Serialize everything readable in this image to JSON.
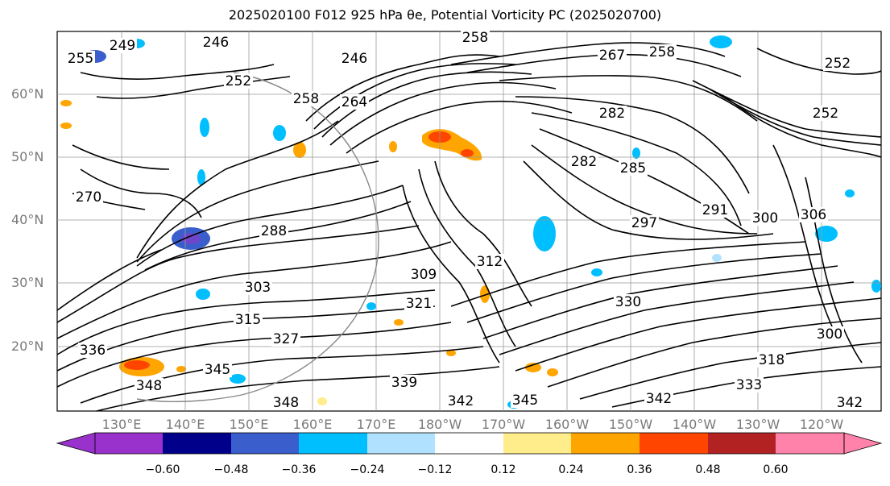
{
  "title": "2025020100 F012 925 hPa θe, Potential Vorticity PC (2025020700)",
  "map": {
    "lat_labels": [
      "60°N",
      "50°N",
      "40°N",
      "30°N",
      "20°N"
    ],
    "lon_labels": [
      "130°E",
      "140°E",
      "150°E",
      "160°E",
      "170°E",
      "180°W",
      "170°W",
      "160°W",
      "150°W",
      "140°W",
      "130°W",
      "120°W"
    ],
    "contour_labels": [
      "255",
      "249",
      "246",
      "246",
      "252",
      "258",
      "264",
      "258",
      "267",
      "258",
      "252",
      "252",
      "282",
      "282",
      "285",
      "270",
      "288",
      "297",
      "291",
      "300",
      "306",
      "309",
      "303",
      "321",
      "315",
      "327",
      "336",
      "330",
      "318",
      "345",
      "348",
      "339",
      "342",
      "345",
      "342",
      "333",
      "300",
      "348",
      "342",
      "312"
    ]
  },
  "colorbar": {
    "colors": [
      "#9932cc",
      "#00008b",
      "#3a5fcd",
      "#00bfff",
      "#b0e2ff",
      "#ffffff",
      "#ffec8b",
      "#ffa500",
      "#ff4500",
      "#b22222",
      "#ff82ab"
    ],
    "tick_labels": [
      "−0.60",
      "−0.48",
      "−0.36",
      "−0.24",
      "−0.12",
      "0.12",
      "0.24",
      "0.36",
      "0.48",
      "0.60"
    ]
  }
}
